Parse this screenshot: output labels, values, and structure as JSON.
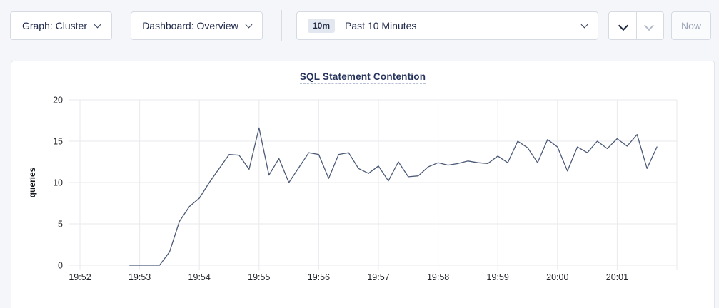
{
  "toolbar": {
    "graph_dropdown": {
      "label": "Graph: Cluster"
    },
    "dashboard_dropdown": {
      "label": "Dashboard: Overview"
    },
    "time_picker": {
      "badge": "10m",
      "label": "Past 10 Minutes"
    },
    "now_button_label": "Now"
  },
  "icons": {
    "graph_dropdown_icon": "chevron-down",
    "dashboard_dropdown_icon": "chevron-down",
    "time_picker_icon": "chevron-down",
    "prev_icon": "chevron-left",
    "next_icon": "chevron-right"
  },
  "chart_data": {
    "type": "line",
    "title": "SQL Statement Contention",
    "ylabel": "queries",
    "xlabel": "",
    "ylim": [
      0,
      20
    ],
    "y_ticks": [
      0,
      5,
      10,
      15,
      20
    ],
    "x_axis": {
      "tick_labels": [
        "19:52",
        "19:53",
        "19:54",
        "19:55",
        "19:56",
        "19:57",
        "19:58",
        "19:59",
        "20:00",
        "20:01"
      ],
      "tick_interval_seconds": 60,
      "domain_seconds": [
        0,
        600
      ]
    },
    "grid": true,
    "legend_position": "none",
    "line_color": "#4c5a77",
    "grid_color": "#e9eaee",
    "tick_text_color": "#1e2126",
    "series": [
      {
        "name": "queries",
        "start_offset_seconds": 50,
        "step_seconds": 10,
        "values": [
          0,
          0,
          0,
          0,
          1.6,
          5.3,
          7.1,
          8.1,
          10.0,
          11.7,
          13.4,
          13.3,
          11.6,
          16.6,
          10.9,
          12.9,
          10.0,
          11.8,
          13.6,
          13.4,
          10.5,
          13.4,
          13.6,
          11.7,
          11.1,
          12.0,
          10.2,
          12.5,
          10.7,
          10.8,
          11.9,
          12.4,
          12.1,
          12.3,
          12.6,
          12.4,
          12.3,
          13.2,
          12.4,
          15.0,
          14.2,
          12.4,
          15.2,
          14.3,
          11.4,
          14.3,
          13.6,
          15.0,
          14.1,
          15.3,
          14.4,
          15.8,
          11.7,
          14.3
        ]
      }
    ]
  }
}
